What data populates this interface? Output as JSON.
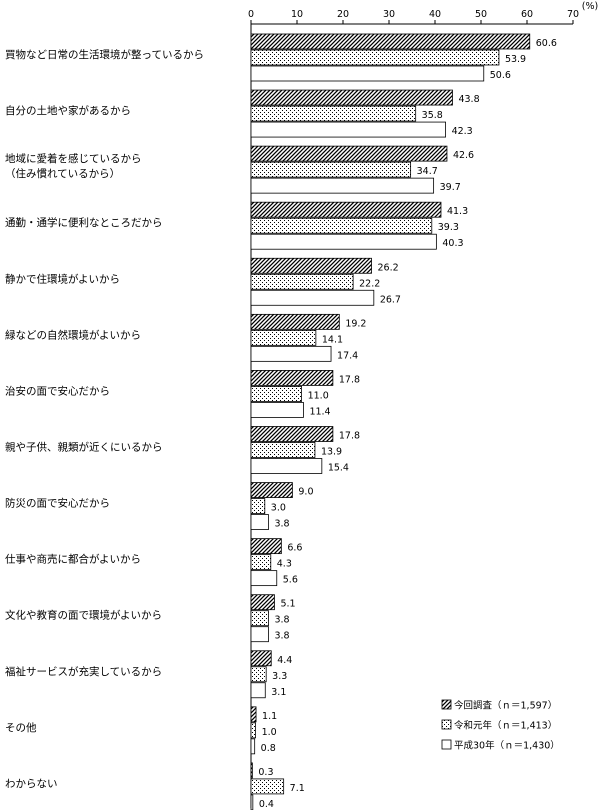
{
  "chart_data": {
    "type": "bar",
    "orientation": "horizontal",
    "unit_label": "(%)",
    "xlim": [
      0,
      70
    ],
    "xticks": [
      "0",
      "10",
      "20",
      "30",
      "40",
      "50",
      "60",
      "70"
    ],
    "grid": false,
    "legend_position": "bottom-right",
    "categories": [
      [
        "買物など日常の生活環境が整っているから"
      ],
      [
        "自分の土地や家があるから"
      ],
      [
        "地域に愛着を感じているから",
        "（住み慣れているから）"
      ],
      [
        "通勤・通学に便利なところだから"
      ],
      [
        "静かで住環境がよいから"
      ],
      [
        "緑などの自然環境がよいから"
      ],
      [
        "治安の面で安心だから"
      ],
      [
        "親や子供、親類が近くにいるから"
      ],
      [
        "防災の面で安心だから"
      ],
      [
        "仕事や商売に都合がよいから"
      ],
      [
        "文化や教育の面で環境がよいから"
      ],
      [
        "福祉サービスが充実しているから"
      ],
      [
        "その他"
      ],
      [
        "わからない"
      ]
    ],
    "series": [
      {
        "name": "今回調査（ｎ＝1,597）",
        "pattern": "hatch",
        "values": [
          60.6,
          43.8,
          42.6,
          41.3,
          26.2,
          19.2,
          17.8,
          17.8,
          9.0,
          6.6,
          5.1,
          4.4,
          1.1,
          0.3
        ],
        "labels": [
          "60.6",
          "43.8",
          "42.6",
          "41.3",
          "26.2",
          "19.2",
          "17.8",
          "17.8",
          "9.0",
          "6.6",
          "5.1",
          "4.4",
          "1.1",
          "0.3"
        ]
      },
      {
        "name": "令和元年（ｎ＝1,413）",
        "pattern": "dots",
        "values": [
          53.9,
          35.8,
          34.7,
          39.3,
          22.2,
          14.1,
          11.0,
          13.9,
          3.0,
          4.3,
          3.8,
          3.3,
          1.0,
          7.1
        ],
        "labels": [
          "53.9",
          "35.8",
          "34.7",
          "39.3",
          "22.2",
          "14.1",
          "11.0",
          "13.9",
          "3.0",
          "4.3",
          "3.8",
          "3.3",
          "1.0",
          "7.1"
        ]
      },
      {
        "name": "平成30年（ｎ＝1,430）",
        "pattern": "blank",
        "values": [
          50.6,
          42.3,
          39.7,
          40.3,
          26.7,
          17.4,
          11.4,
          15.4,
          3.8,
          5.6,
          3.8,
          3.1,
          0.8,
          0.4
        ],
        "labels": [
          "50.6",
          "42.3",
          "39.7",
          "40.3",
          "26.7",
          "17.4",
          "11.4",
          "15.4",
          "3.8",
          "5.6",
          "3.8",
          "3.1",
          "0.8",
          "0.4"
        ]
      }
    ]
  }
}
